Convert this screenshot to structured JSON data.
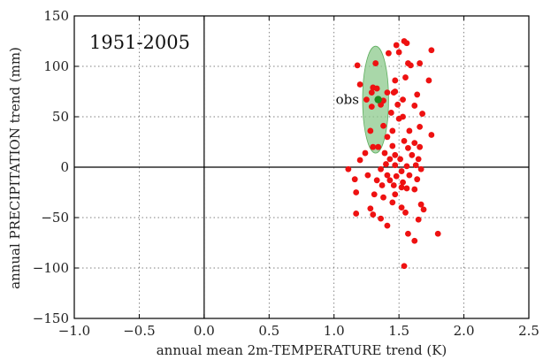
{
  "chart_data": {
    "type": "scatter",
    "title": "",
    "xlabel": "annual mean 2m-TEMPERATURE trend (K)",
    "ylabel": "annual PRECIPITATION trend (mm)",
    "xlim": [
      -1.0,
      2.5
    ],
    "ylim": [
      -150,
      150
    ],
    "xticks": [
      -1.0,
      -0.5,
      0.0,
      0.5,
      1.0,
      1.5,
      2.0,
      2.5
    ],
    "xtick_labels": [
      "−1.0",
      "−0.5",
      "0.0",
      "0.5",
      "1.0",
      "1.5",
      "2.0",
      "2.5"
    ],
    "yticks": [
      -150,
      -100,
      -50,
      0,
      50,
      100,
      150
    ],
    "ytick_labels": [
      "−150",
      "−100",
      "−50",
      "0",
      "50",
      "100",
      "150"
    ],
    "grid": true,
    "grid_style": "dotted",
    "reference_lines": {
      "x": 0,
      "y": 0
    },
    "annotation": "1951-2005",
    "observation": {
      "label": "obs",
      "x": 1.34,
      "y": 67,
      "color": "#1f8a1f",
      "ellipse": {
        "x_center": 1.32,
        "y_center": 67,
        "x_halfwidth": 0.1,
        "y_halfwidth": 53,
        "color": "#8cc98c"
      }
    },
    "series": [
      {
        "color": "#ee1111",
        "points": [
          {
            "x": 1.54,
            "y": 125
          },
          {
            "x": 1.56,
            "y": 123
          },
          {
            "x": 1.75,
            "y": 116
          },
          {
            "x": 1.48,
            "y": 121
          },
          {
            "x": 1.42,
            "y": 113
          },
          {
            "x": 1.5,
            "y": 114
          },
          {
            "x": 1.18,
            "y": 101
          },
          {
            "x": 1.57,
            "y": 103
          },
          {
            "x": 1.59,
            "y": 101
          },
          {
            "x": 1.66,
            "y": 103
          },
          {
            "x": 1.32,
            "y": 103
          },
          {
            "x": 1.2,
            "y": 82
          },
          {
            "x": 1.47,
            "y": 86
          },
          {
            "x": 1.55,
            "y": 89
          },
          {
            "x": 1.73,
            "y": 86
          },
          {
            "x": 1.3,
            "y": 79
          },
          {
            "x": 1.33,
            "y": 78
          },
          {
            "x": 1.47,
            "y": 75
          },
          {
            "x": 1.29,
            "y": 74
          },
          {
            "x": 1.41,
            "y": 74
          },
          {
            "x": 1.46,
            "y": 74
          },
          {
            "x": 1.64,
            "y": 72
          },
          {
            "x": 1.25,
            "y": 67
          },
          {
            "x": 1.38,
            "y": 66
          },
          {
            "x": 1.53,
            "y": 67
          },
          {
            "x": 1.29,
            "y": 60
          },
          {
            "x": 1.36,
            "y": 62
          },
          {
            "x": 1.49,
            "y": 62
          },
          {
            "x": 1.62,
            "y": 61
          },
          {
            "x": 1.44,
            "y": 54
          },
          {
            "x": 1.68,
            "y": 53
          },
          {
            "x": 1.5,
            "y": 48
          },
          {
            "x": 1.53,
            "y": 50
          },
          {
            "x": 1.38,
            "y": 41
          },
          {
            "x": 1.66,
            "y": 40
          },
          {
            "x": 1.28,
            "y": 36
          },
          {
            "x": 1.45,
            "y": 36
          },
          {
            "x": 1.58,
            "y": 36
          },
          {
            "x": 1.75,
            "y": 32
          },
          {
            "x": 1.41,
            "y": 30
          },
          {
            "x": 1.54,
            "y": 26
          },
          {
            "x": 1.62,
            "y": 24
          },
          {
            "x": 1.3,
            "y": 20
          },
          {
            "x": 1.34,
            "y": 20
          },
          {
            "x": 1.45,
            "y": 21
          },
          {
            "x": 1.57,
            "y": 19
          },
          {
            "x": 1.66,
            "y": 20
          },
          {
            "x": 1.24,
            "y": 14
          },
          {
            "x": 1.39,
            "y": 14
          },
          {
            "x": 1.47,
            "y": 12
          },
          {
            "x": 1.6,
            "y": 12
          },
          {
            "x": 1.43,
            "y": 8
          },
          {
            "x": 1.51,
            "y": 8
          },
          {
            "x": 1.65,
            "y": 8
          },
          {
            "x": 1.2,
            "y": 7
          },
          {
            "x": 1.4,
            "y": 3
          },
          {
            "x": 1.47,
            "y": 2
          },
          {
            "x": 1.56,
            "y": 1
          },
          {
            "x": 1.63,
            "y": 2
          },
          {
            "x": 1.11,
            "y": -2
          },
          {
            "x": 1.36,
            "y": -2
          },
          {
            "x": 1.52,
            "y": -4
          },
          {
            "x": 1.67,
            "y": -2
          },
          {
            "x": 1.26,
            "y": -8
          },
          {
            "x": 1.41,
            "y": -8
          },
          {
            "x": 1.48,
            "y": -9
          },
          {
            "x": 1.58,
            "y": -8
          },
          {
            "x": 1.16,
            "y": -12
          },
          {
            "x": 1.33,
            "y": -13
          },
          {
            "x": 1.43,
            "y": -13
          },
          {
            "x": 1.53,
            "y": -15
          },
          {
            "x": 1.64,
            "y": -12
          },
          {
            "x": 1.37,
            "y": -18
          },
          {
            "x": 1.46,
            "y": -18
          },
          {
            "x": 1.52,
            "y": -20
          },
          {
            "x": 1.56,
            "y": -21
          },
          {
            "x": 1.62,
            "y": -22
          },
          {
            "x": 1.17,
            "y": -25
          },
          {
            "x": 1.31,
            "y": -27
          },
          {
            "x": 1.47,
            "y": -27
          },
          {
            "x": 1.38,
            "y": -30
          },
          {
            "x": 1.45,
            "y": -35
          },
          {
            "x": 1.67,
            "y": -37
          },
          {
            "x": 1.28,
            "y": -41
          },
          {
            "x": 1.52,
            "y": -40
          },
          {
            "x": 1.69,
            "y": -42
          },
          {
            "x": 1.55,
            "y": -45
          },
          {
            "x": 1.17,
            "y": -46
          },
          {
            "x": 1.3,
            "y": -47
          },
          {
            "x": 1.36,
            "y": -51
          },
          {
            "x": 1.65,
            "y": -52
          },
          {
            "x": 1.41,
            "y": -58
          },
          {
            "x": 1.57,
            "y": -66
          },
          {
            "x": 1.8,
            "y": -66
          },
          {
            "x": 1.62,
            "y": -73
          },
          {
            "x": 1.54,
            "y": -98
          }
        ]
      }
    ]
  }
}
